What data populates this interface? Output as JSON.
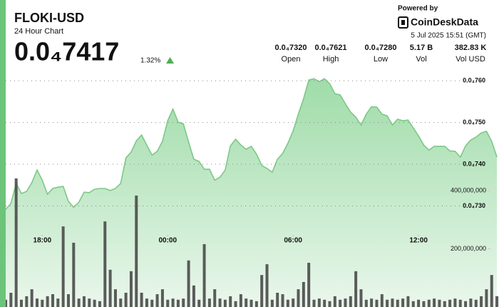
{
  "header": {
    "symbol": "FLOKI-USD",
    "subtitle": "24 Hour Chart",
    "price": "0.0₄7417",
    "change": "1.32%",
    "powered_by": "Powered by",
    "brand": "CoinDeskData",
    "timestamp": "5 Jul 2025 15:51 (GMT)"
  },
  "stats": [
    {
      "value": "0.0₄7320",
      "label": "Open"
    },
    {
      "value": "0.0₄7621",
      "label": "High"
    },
    {
      "value": "0.0₄7280",
      "label": "Low"
    },
    {
      "value": "5.17 B",
      "label": "Vol"
    },
    {
      "value": "382.83 K",
      "label": "Vol USD"
    }
  ],
  "chart_data": {
    "type": "area",
    "x": [
      16.25,
      16.5,
      16.75,
      17,
      17.25,
      17.5,
      17.75,
      18,
      18.25,
      18.5,
      18.75,
      19,
      19.25,
      19.5,
      19.75,
      20,
      20.25,
      20.5,
      20.75,
      21,
      21.25,
      21.5,
      21.75,
      22,
      22.25,
      22.5,
      22.75,
      23,
      23.25,
      23.5,
      23.75,
      24,
      24.25,
      24.5,
      24.75,
      25,
      25.25,
      25.5,
      25.75,
      26,
      26.25,
      26.5,
      26.75,
      27,
      27.25,
      27.5,
      27.75,
      28,
      28.25,
      28.5,
      28.75,
      29,
      29.25,
      29.5,
      29.75,
      30,
      30.25,
      30.5,
      30.75,
      31,
      31.25,
      31.5,
      31.75,
      32,
      32.25,
      32.5,
      32.75,
      33,
      33.25,
      33.5,
      33.75,
      34,
      34.25,
      34.5,
      34.75,
      35,
      35.25,
      35.5,
      35.75,
      36,
      36.25,
      36.5,
      36.75,
      37,
      37.25,
      37.5,
      37.75,
      38,
      38.25,
      38.5,
      38.75,
      39,
      39.25,
      39.5,
      39.75
    ],
    "xlim": [
      16.25,
      39.85
    ],
    "xticks": [
      {
        "value": 18,
        "label": "18:00"
      },
      {
        "value": 24,
        "label": "00:00"
      },
      {
        "value": 30,
        "label": "06:00"
      },
      {
        "value": 36,
        "label": "12:00"
      }
    ],
    "ylim": [
      7.058e-05,
      7.631e-05
    ],
    "yticks": [
      {
        "value": 7.6e-05,
        "label": "0.0₄760"
      },
      {
        "value": 7.5e-05,
        "label": "0.0₄750"
      },
      {
        "value": 7.4e-05,
        "label": "0.0₄740"
      },
      {
        "value": 7.3e-05,
        "label": "0.0₄730"
      }
    ],
    "y2lim": [
      0,
      822000000
    ],
    "y2ticks": [
      {
        "value": 400000000,
        "label": "400,000,000"
      },
      {
        "value": 200000000,
        "label": "200,000,000"
      }
    ],
    "grid": true,
    "series": [
      {
        "type": "area",
        "color": "#7cc886",
        "values": [
          7.292e-05,
          7.306e-05,
          7.354e-05,
          7.33e-05,
          7.335e-05,
          7.356e-05,
          7.386e-05,
          7.362e-05,
          7.328e-05,
          7.342e-05,
          7.345e-05,
          7.347e-05,
          7.311e-05,
          7.297e-05,
          7.309e-05,
          7.333e-05,
          7.332e-05,
          7.34e-05,
          7.342e-05,
          7.342e-05,
          7.337e-05,
          7.342e-05,
          7.354e-05,
          7.415e-05,
          7.429e-05,
          7.456e-05,
          7.47e-05,
          7.446e-05,
          7.422e-05,
          7.431e-05,
          7.455e-05,
          7.504e-05,
          7.532e-05,
          7.501e-05,
          7.497e-05,
          7.453e-05,
          7.412e-05,
          7.407e-05,
          7.388e-05,
          7.388e-05,
          7.362e-05,
          7.369e-05,
          7.386e-05,
          7.444e-05,
          7.46e-05,
          7.446e-05,
          7.436e-05,
          7.443e-05,
          7.424e-05,
          7.397e-05,
          7.39e-05,
          7.381e-05,
          7.412e-05,
          7.426e-05,
          7.45e-05,
          7.48e-05,
          7.52e-05,
          7.557e-05,
          7.602e-05,
          7.605e-05,
          7.598e-05,
          7.605e-05,
          7.593e-05,
          7.569e-05,
          7.566e-05,
          7.545e-05,
          7.525e-05,
          7.513e-05,
          7.494e-05,
          7.52e-05,
          7.538e-05,
          7.537e-05,
          7.52e-05,
          7.516e-05,
          7.494e-05,
          7.508e-05,
          7.504e-05,
          7.506e-05,
          7.487e-05,
          7.468e-05,
          7.446e-05,
          7.434e-05,
          7.443e-05,
          7.443e-05,
          7.443e-05,
          7.432e-05,
          7.431e-05,
          7.417e-05,
          7.444e-05,
          7.458e-05,
          7.465e-05,
          7.475e-05,
          7.479e-05,
          7.455e-05,
          7.417e-05
        ]
      },
      {
        "type": "bar",
        "axis": "y2",
        "color": "#4a4a4a",
        "values": [
          25000000,
          49000000,
          442000000,
          25000000,
          37000000,
          61000000,
          29000000,
          25000000,
          37000000,
          44000000,
          29000000,
          277000000,
          44000000,
          221000000,
          29000000,
          37000000,
          29000000,
          25000000,
          20000000,
          294000000,
          128000000,
          61000000,
          29000000,
          49000000,
          123000000,
          383000000,
          49000000,
          29000000,
          25000000,
          44000000,
          61000000,
          25000000,
          29000000,
          25000000,
          29000000,
          160000000,
          74000000,
          25000000,
          216000000,
          29000000,
          61000000,
          29000000,
          25000000,
          37000000,
          20000000,
          44000000,
          29000000,
          25000000,
          20000000,
          110000000,
          147000000,
          25000000,
          49000000,
          44000000,
          25000000,
          29000000,
          61000000,
          86000000,
          152000000,
          25000000,
          29000000,
          25000000,
          20000000,
          37000000,
          25000000,
          29000000,
          37000000,
          123000000,
          61000000,
          25000000,
          29000000,
          25000000,
          44000000,
          25000000,
          29000000,
          25000000,
          29000000,
          37000000,
          20000000,
          25000000,
          20000000,
          25000000,
          29000000,
          25000000,
          20000000,
          25000000,
          29000000,
          25000000,
          20000000,
          29000000,
          25000000,
          37000000,
          61000000,
          110000000,
          37000000
        ]
      }
    ]
  }
}
